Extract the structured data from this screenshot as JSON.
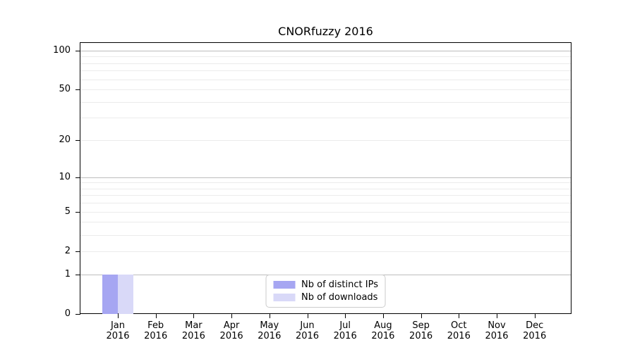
{
  "figure": {
    "background": "#ffffff",
    "spine_color": "#000000",
    "major_grid_color": "#bdbdbd",
    "minor_grid_color": "#ebebeb",
    "legend_border_color": "#cccccc"
  },
  "chart_data": {
    "type": "bar",
    "title": "CNORfuzzy 2016",
    "xlabel": "",
    "ylabel": "",
    "yscale": "log1p",
    "ylim": [
      0,
      115
    ],
    "grid": true,
    "legend_position": "lower center",
    "categories": [
      "Jan 2016",
      "Feb 2016",
      "Mar 2016",
      "Apr 2016",
      "May 2016",
      "Jun 2016",
      "Jul 2016",
      "Aug 2016",
      "Sep 2016",
      "Oct 2016",
      "Nov 2016",
      "Dec 2016"
    ],
    "x_tick_labels": [
      {
        "month": "Jan",
        "year": "2016"
      },
      {
        "month": "Feb",
        "year": "2016"
      },
      {
        "month": "Mar",
        "year": "2016"
      },
      {
        "month": "Apr",
        "year": "2016"
      },
      {
        "month": "May",
        "year": "2016"
      },
      {
        "month": "Jun",
        "year": "2016"
      },
      {
        "month": "Jul",
        "year": "2016"
      },
      {
        "month": "Aug",
        "year": "2016"
      },
      {
        "month": "Sep",
        "year": "2016"
      },
      {
        "month": "Oct",
        "year": "2016"
      },
      {
        "month": "Nov",
        "year": "2016"
      },
      {
        "month": "Dec",
        "year": "2016"
      }
    ],
    "major_yticks": [
      0,
      1,
      2,
      5,
      10,
      20,
      50,
      100
    ],
    "decade_gridlines": [
      1,
      10,
      100
    ],
    "minor_gridlines": [
      2,
      3,
      4,
      5,
      6,
      7,
      8,
      9,
      20,
      30,
      40,
      50,
      60,
      70,
      80,
      90
    ],
    "series": [
      {
        "name": "Nb of distinct IPs",
        "color": "#a6a6f2",
        "values": [
          1,
          0,
          0,
          0,
          0,
          0,
          0,
          0,
          0,
          0,
          0,
          0
        ]
      },
      {
        "name": "Nb of downloads",
        "color": "#d9d9f8",
        "values": [
          1,
          0,
          0,
          0,
          0,
          0,
          0,
          0,
          0,
          0,
          0,
          0
        ]
      }
    ],
    "legend": {
      "entries": [
        {
          "label": "Nb of distinct IPs",
          "color": "#a6a6f2"
        },
        {
          "label": "Nb of downloads",
          "color": "#d9d9f8"
        }
      ]
    }
  }
}
